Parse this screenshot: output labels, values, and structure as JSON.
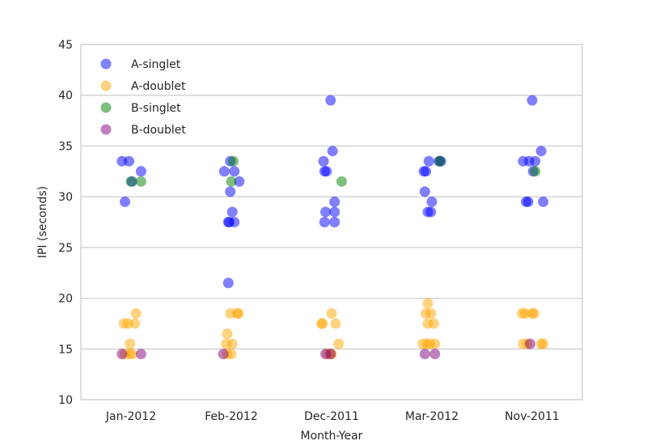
{
  "chart_data": {
    "type": "scatter",
    "title": "",
    "xlabel": "Month-Year",
    "ylabel": "IPI (seconds)",
    "categories": [
      "Jan-2012",
      "Feb-2012",
      "Dec-2011",
      "Mar-2012",
      "Nov-2011"
    ],
    "ylim": [
      10,
      45
    ],
    "yticks": [
      10,
      15,
      20,
      25,
      30,
      35,
      40,
      45
    ],
    "grid": "horizontal",
    "legend": "top-left",
    "series": [
      {
        "name": "A-singlet",
        "color": "#0000ff",
        "points": [
          {
            "x": "Jan-2012",
            "jitter": -0.09,
            "y": 33.5
          },
          {
            "x": "Jan-2012",
            "jitter": -0.02,
            "y": 33.5
          },
          {
            "x": "Jan-2012",
            "jitter": 0.1,
            "y": 32.5
          },
          {
            "x": "Jan-2012",
            "jitter": 0.01,
            "y": 31.5
          },
          {
            "x": "Jan-2012",
            "jitter": -0.06,
            "y": 29.5
          },
          {
            "x": "Feb-2012",
            "jitter": -0.07,
            "y": 32.5
          },
          {
            "x": "Feb-2012",
            "jitter": -0.01,
            "y": 33.5
          },
          {
            "x": "Feb-2012",
            "jitter": 0.03,
            "y": 32.5
          },
          {
            "x": "Feb-2012",
            "jitter": 0.08,
            "y": 31.5
          },
          {
            "x": "Feb-2012",
            "jitter": -0.01,
            "y": 30.5
          },
          {
            "x": "Feb-2012",
            "jitter": 0.01,
            "y": 28.5
          },
          {
            "x": "Feb-2012",
            "jitter": -0.03,
            "y": 27.5
          },
          {
            "x": "Feb-2012",
            "jitter": -0.02,
            "y": 27.5
          },
          {
            "x": "Feb-2012",
            "jitter": 0.03,
            "y": 27.5
          },
          {
            "x": "Feb-2012",
            "jitter": -0.03,
            "y": 21.5
          },
          {
            "x": "Dec-2011",
            "jitter": -0.01,
            "y": 39.5
          },
          {
            "x": "Dec-2011",
            "jitter": 0.01,
            "y": 34.5
          },
          {
            "x": "Dec-2011",
            "jitter": -0.08,
            "y": 33.5
          },
          {
            "x": "Dec-2011",
            "jitter": -0.07,
            "y": 32.5
          },
          {
            "x": "Dec-2011",
            "jitter": -0.05,
            "y": 32.5
          },
          {
            "x": "Dec-2011",
            "jitter": 0.03,
            "y": 29.5
          },
          {
            "x": "Dec-2011",
            "jitter": -0.06,
            "y": 28.5
          },
          {
            "x": "Dec-2011",
            "jitter": 0.03,
            "y": 28.5
          },
          {
            "x": "Dec-2011",
            "jitter": -0.07,
            "y": 27.5
          },
          {
            "x": "Dec-2011",
            "jitter": 0.03,
            "y": 27.5
          },
          {
            "x": "Mar-2012",
            "jitter": -0.08,
            "y": 32.5
          },
          {
            "x": "Mar-2012",
            "jitter": -0.06,
            "y": 32.5
          },
          {
            "x": "Mar-2012",
            "jitter": -0.03,
            "y": 33.5
          },
          {
            "x": "Mar-2012",
            "jitter": 0.07,
            "y": 33.5
          },
          {
            "x": "Mar-2012",
            "jitter": 0.09,
            "y": 33.5
          },
          {
            "x": "Mar-2012",
            "jitter": -0.07,
            "y": 30.5
          },
          {
            "x": "Mar-2012",
            "jitter": 0.0,
            "y": 29.5
          },
          {
            "x": "Mar-2012",
            "jitter": -0.04,
            "y": 28.5
          },
          {
            "x": "Mar-2012",
            "jitter": -0.01,
            "y": 28.5
          },
          {
            "x": "Nov-2011",
            "jitter": -0.09,
            "y": 33.5
          },
          {
            "x": "Nov-2011",
            "jitter": -0.03,
            "y": 33.5
          },
          {
            "x": "Nov-2011",
            "jitter": 0.03,
            "y": 33.5
          },
          {
            "x": "Nov-2011",
            "jitter": 0.09,
            "y": 34.5
          },
          {
            "x": "Nov-2011",
            "jitter": 0.0,
            "y": 39.5
          },
          {
            "x": "Nov-2011",
            "jitter": 0.01,
            "y": 32.5
          },
          {
            "x": "Nov-2011",
            "jitter": -0.06,
            "y": 29.5
          },
          {
            "x": "Nov-2011",
            "jitter": -0.04,
            "y": 29.5
          },
          {
            "x": "Nov-2011",
            "jitter": 0.11,
            "y": 29.5
          }
        ]
      },
      {
        "name": "A-doublet",
        "color": "#ffa500",
        "points": [
          {
            "x": "Jan-2012",
            "jitter": 0.05,
            "y": 18.5
          },
          {
            "x": "Jan-2012",
            "jitter": -0.07,
            "y": 17.5
          },
          {
            "x": "Jan-2012",
            "jitter": -0.03,
            "y": 17.5
          },
          {
            "x": "Jan-2012",
            "jitter": 0.04,
            "y": 17.5
          },
          {
            "x": "Jan-2012",
            "jitter": -0.01,
            "y": 15.5
          },
          {
            "x": "Jan-2012",
            "jitter": -0.06,
            "y": 14.5
          },
          {
            "x": "Jan-2012",
            "jitter": -0.01,
            "y": 14.5
          },
          {
            "x": "Jan-2012",
            "jitter": 0.01,
            "y": 14.5
          },
          {
            "x": "Feb-2012",
            "jitter": -0.01,
            "y": 18.5
          },
          {
            "x": "Feb-2012",
            "jitter": 0.06,
            "y": 18.5
          },
          {
            "x": "Feb-2012",
            "jitter": 0.07,
            "y": 18.5
          },
          {
            "x": "Feb-2012",
            "jitter": -0.04,
            "y": 16.5
          },
          {
            "x": "Feb-2012",
            "jitter": -0.05,
            "y": 15.5
          },
          {
            "x": "Feb-2012",
            "jitter": 0.01,
            "y": 15.5
          },
          {
            "x": "Feb-2012",
            "jitter": -0.04,
            "y": 14.5
          },
          {
            "x": "Feb-2012",
            "jitter": 0.0,
            "y": 14.5
          },
          {
            "x": "Dec-2011",
            "jitter": 0.0,
            "y": 18.5
          },
          {
            "x": "Dec-2011",
            "jitter": -0.1,
            "y": 17.5
          },
          {
            "x": "Dec-2011",
            "jitter": -0.09,
            "y": 17.5
          },
          {
            "x": "Dec-2011",
            "jitter": 0.04,
            "y": 17.5
          },
          {
            "x": "Dec-2011",
            "jitter": 0.07,
            "y": 15.5
          },
          {
            "x": "Dec-2011",
            "jitter": -0.04,
            "y": 14.5
          },
          {
            "x": "Dec-2011",
            "jitter": -0.01,
            "y": 14.5
          },
          {
            "x": "Dec-2011",
            "jitter": 0.0,
            "y": 14.5
          },
          {
            "x": "Mar-2012",
            "jitter": -0.04,
            "y": 19.5
          },
          {
            "x": "Mar-2012",
            "jitter": -0.06,
            "y": 18.5
          },
          {
            "x": "Mar-2012",
            "jitter": -0.01,
            "y": 18.5
          },
          {
            "x": "Mar-2012",
            "jitter": -0.04,
            "y": 17.5
          },
          {
            "x": "Mar-2012",
            "jitter": 0.02,
            "y": 17.5
          },
          {
            "x": "Mar-2012",
            "jitter": -0.09,
            "y": 15.5
          },
          {
            "x": "Mar-2012",
            "jitter": -0.05,
            "y": 15.5
          },
          {
            "x": "Mar-2012",
            "jitter": -0.02,
            "y": 15.5
          },
          {
            "x": "Mar-2012",
            "jitter": 0.03,
            "y": 15.5
          },
          {
            "x": "Nov-2011",
            "jitter": -0.1,
            "y": 18.5
          },
          {
            "x": "Nov-2011",
            "jitter": -0.07,
            "y": 18.5
          },
          {
            "x": "Nov-2011",
            "jitter": 0.0,
            "y": 18.5
          },
          {
            "x": "Nov-2011",
            "jitter": 0.02,
            "y": 18.5
          },
          {
            "x": "Nov-2011",
            "jitter": -0.09,
            "y": 15.5
          },
          {
            "x": "Nov-2011",
            "jitter": -0.05,
            "y": 15.5
          },
          {
            "x": "Nov-2011",
            "jitter": 0.09,
            "y": 15.5
          },
          {
            "x": "Nov-2011",
            "jitter": 0.11,
            "y": 15.5
          }
        ]
      },
      {
        "name": "B-singlet",
        "color": "#008000",
        "points": [
          {
            "x": "Jan-2012",
            "jitter": 0.0,
            "y": 31.5
          },
          {
            "x": "Jan-2012",
            "jitter": 0.1,
            "y": 31.5
          },
          {
            "x": "Feb-2012",
            "jitter": 0.02,
            "y": 33.5
          },
          {
            "x": "Feb-2012",
            "jitter": 0.0,
            "y": 31.5
          },
          {
            "x": "Dec-2011",
            "jitter": 0.1,
            "y": 31.5
          },
          {
            "x": "Mar-2012",
            "jitter": 0.08,
            "y": 33.5
          },
          {
            "x": "Nov-2011",
            "jitter": 0.03,
            "y": 32.5
          }
        ]
      },
      {
        "name": "B-doublet",
        "color": "#800080",
        "points": [
          {
            "x": "Jan-2012",
            "jitter": -0.09,
            "y": 14.5
          },
          {
            "x": "Jan-2012",
            "jitter": 0.1,
            "y": 14.5
          },
          {
            "x": "Feb-2012",
            "jitter": -0.08,
            "y": 14.5
          },
          {
            "x": "Dec-2011",
            "jitter": -0.06,
            "y": 14.5
          },
          {
            "x": "Dec-2011",
            "jitter": -0.01,
            "y": 14.5
          },
          {
            "x": "Mar-2012",
            "jitter": -0.07,
            "y": 14.5
          },
          {
            "x": "Mar-2012",
            "jitter": 0.03,
            "y": 14.5
          },
          {
            "x": "Nov-2011",
            "jitter": -0.02,
            "y": 15.5
          }
        ]
      }
    ]
  }
}
